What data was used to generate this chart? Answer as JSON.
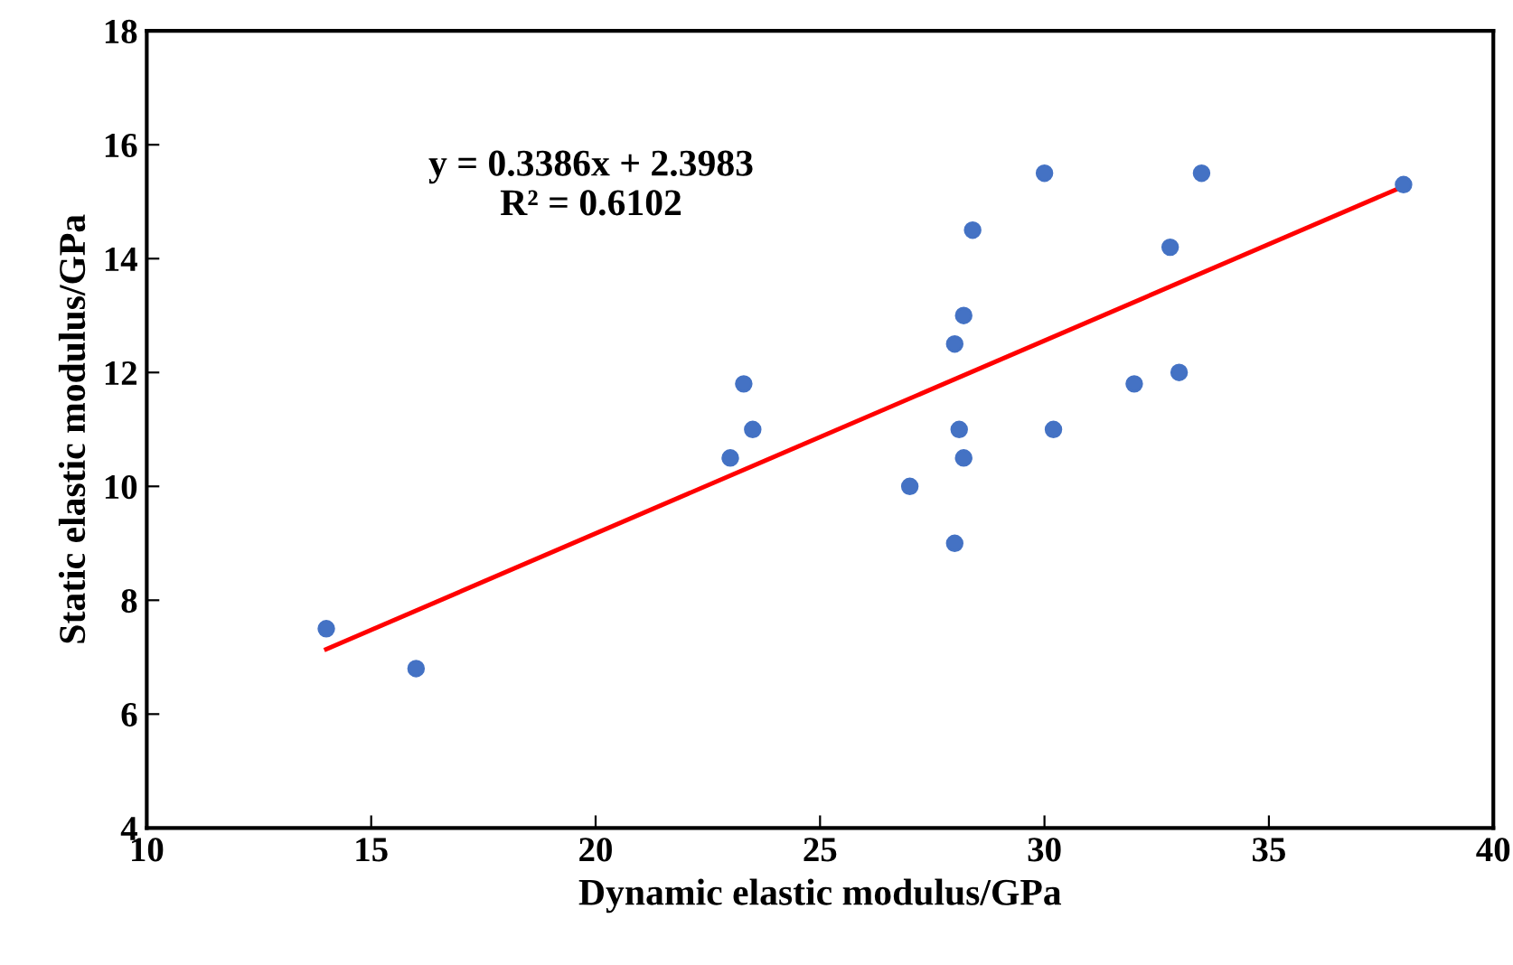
{
  "chart_data": {
    "type": "scatter",
    "xlabel": "Dynamic elastic modulus/GPa",
    "ylabel": "Static elastic modulus/GPa",
    "annotations": [
      "y = 0.3386x + 2.3983\nR² = 0.6102"
    ],
    "series": [
      {
        "color": "#4472c4",
        "marker": "circle",
        "x": [
          14,
          16,
          23,
          23.3,
          23.5,
          27,
          28,
          28,
          28.1,
          28.2,
          28.2,
          28.4,
          30,
          30.2,
          32,
          32.8,
          33,
          33.5,
          38
        ],
        "values": [
          7.5,
          6.8,
          10.5,
          11.8,
          11,
          10,
          9,
          12.5,
          11,
          13,
          10.5,
          14.5,
          15.5,
          11,
          11.8,
          14.2,
          12,
          15.5,
          15.3
        ]
      },
      {
        "type": "line",
        "color": "#ff0000",
        "x": [
          14,
          38
        ],
        "values": [
          7.14,
          15.27
        ]
      }
    ],
    "xlim": [
      10,
      40
    ],
    "xticks": [
      10,
      15,
      20,
      25,
      30,
      35,
      40
    ],
    "ylim": [
      4,
      18
    ],
    "yticks": [
      4,
      6,
      8,
      10,
      12,
      14,
      16,
      18
    ],
    "grid": false,
    "legend": false
  }
}
